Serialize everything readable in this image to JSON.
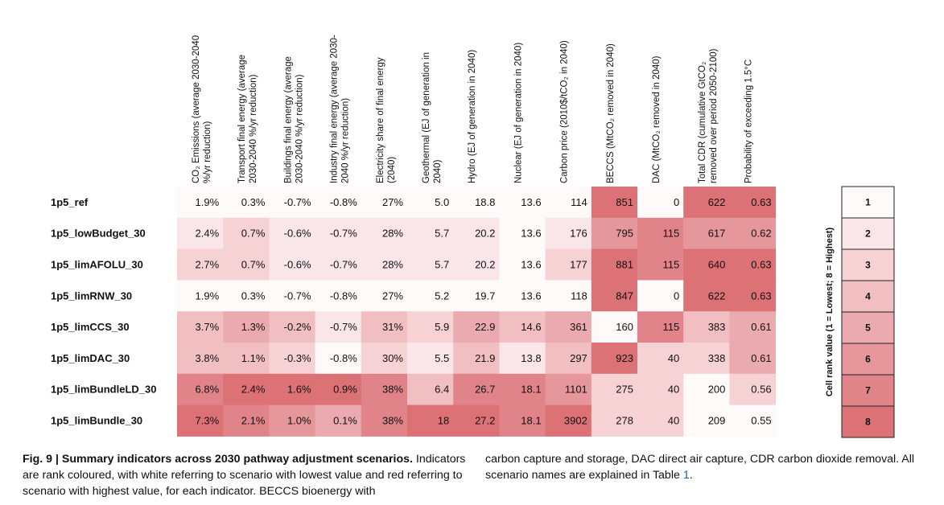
{
  "figure": {
    "column_headers": [
      [
        "CO₂ Emissions (average 2030-2040",
        "%/yr reduction)"
      ],
      [
        "Transport final energy (average",
        "2030-2040 %/yr reduction)"
      ],
      [
        "Buildings final energy (average",
        "2030-2040 %/yr reduction)"
      ],
      [
        "Industry final energy (average 2030-",
        "2040 %/yr reduction)"
      ],
      [
        "Electricity share of final energy",
        "(2040)"
      ],
      [
        "Geothermal (EJ of generation in",
        "2040)"
      ],
      [
        "Hydro (EJ of generation in 2040)"
      ],
      [
        "Nuclear (EJ of generation in 2040)"
      ],
      [
        "Carbon price (2010$/tCO₂ in 2040)"
      ],
      [
        "BECCS (MtCO₂ removed in 2040)"
      ],
      [
        "DAC (MtCO₂ removed in 2040)"
      ],
      [
        "Total CDR (cumulative GtCO₂",
        "removed over period 2050-2100)"
      ],
      [
        "Probability of exceeding 1.5°C"
      ]
    ],
    "rows": [
      {
        "label": "1p5_ref",
        "values": [
          "1.9%",
          "0.3%",
          "-0.7%",
          "-0.8%",
          "27%",
          "5.0",
          "18.8",
          "13.6",
          "114",
          "851",
          "0",
          "622",
          "0.63"
        ],
        "ranks": [
          1,
          1,
          1,
          1,
          1,
          1,
          1,
          1,
          1,
          8,
          1,
          8,
          8
        ]
      },
      {
        "label": "1p5_lowBudget_30",
        "values": [
          "2.4%",
          "0.7%",
          "-0.6%",
          "-0.7%",
          "28%",
          "5.7",
          "20.2",
          "13.6",
          "176",
          "795",
          "115",
          "617",
          "0.62"
        ],
        "ranks": [
          2,
          3,
          2,
          2,
          2,
          2,
          2,
          1,
          2,
          6,
          7,
          6,
          6
        ]
      },
      {
        "label": "1p5_limAFOLU_30",
        "values": [
          "2.7%",
          "0.7%",
          "-0.6%",
          "-0.7%",
          "28%",
          "5.7",
          "20.2",
          "13.6",
          "177",
          "881",
          "115",
          "640",
          "0.63"
        ],
        "ranks": [
          3,
          3,
          2,
          2,
          2,
          2,
          2,
          1,
          3,
          8,
          7,
          8,
          8
        ]
      },
      {
        "label": "1p5_limRNW_30",
        "values": [
          "1.9%",
          "0.3%",
          "-0.7%",
          "-0.8%",
          "27%",
          "5.2",
          "19.7",
          "13.6",
          "118",
          "847",
          "0",
          "622",
          "0.63"
        ],
        "ranks": [
          1,
          1,
          1,
          1,
          1,
          1,
          1,
          1,
          1,
          8,
          1,
          8,
          8
        ]
      },
      {
        "label": "1p5_limCCS_30",
        "values": [
          "3.7%",
          "1.3%",
          "-0.2%",
          "-0.7%",
          "31%",
          "5.9",
          "22.9",
          "14.6",
          "361",
          "160",
          "115",
          "383",
          "0.61"
        ],
        "ranks": [
          4,
          5,
          4,
          2,
          4,
          3,
          5,
          4,
          5,
          1,
          7,
          4,
          5
        ]
      },
      {
        "label": "1p5_limDAC_30",
        "values": [
          "3.8%",
          "1.1%",
          "-0.3%",
          "-0.8%",
          "30%",
          "5.5",
          "21.9",
          "13.8",
          "297",
          "923",
          "40",
          "338",
          "0.61"
        ],
        "ranks": [
          4,
          4,
          3,
          1,
          3,
          2,
          4,
          2,
          4,
          8,
          3,
          3,
          5
        ]
      },
      {
        "label": "1p5_limBundleLD_30",
        "values": [
          "6.8%",
          "2.4%",
          "1.6%",
          "0.9%",
          "38%",
          "6.4",
          "26.7",
          "18.1",
          "1101",
          "275",
          "40",
          "200",
          "0.56"
        ],
        "ranks": [
          7,
          8,
          8,
          8,
          7,
          4,
          7,
          7,
          6,
          3,
          3,
          1,
          3
        ]
      },
      {
        "label": "1p5_limBundle_30",
        "values": [
          "7.3%",
          "2.1%",
          "1.0%",
          "0.1%",
          "38%",
          "18",
          "27.2",
          "18.1",
          "3902",
          "278",
          "40",
          "209",
          "0.55"
        ],
        "ranks": [
          8,
          7,
          6,
          5,
          7,
          8,
          8,
          7,
          8,
          3,
          3,
          1,
          1
        ]
      }
    ]
  },
  "colors": {
    "rank_scale": [
      "#fefafa",
      "#fae6e8",
      "#f6d2d5",
      "#f1bec2",
      "#ebaaaf",
      "#e6979c",
      "#e18489",
      "#dc7176"
    ]
  },
  "legend": {
    "title": "Cell rank value (1 = Lowest; 8 = Highest)",
    "items": [
      "1",
      "2",
      "3",
      "4",
      "5",
      "6",
      "7",
      "8"
    ]
  },
  "caption": {
    "fig_label": "Fig. 9 | Summary indicators across 2030 pathway adjustment scenarios.",
    "left_text": " Indicators are rank coloured, with white referring to scenario with lowest value and red referring to scenario with highest value, for each indicator. BECCS bioenergy with",
    "right_text_before": "carbon capture and storage, DAC direct air capture, CDR carbon dioxide removal. All scenario names are explained in Table ",
    "table_ref": "1",
    "right_text_after": "."
  }
}
